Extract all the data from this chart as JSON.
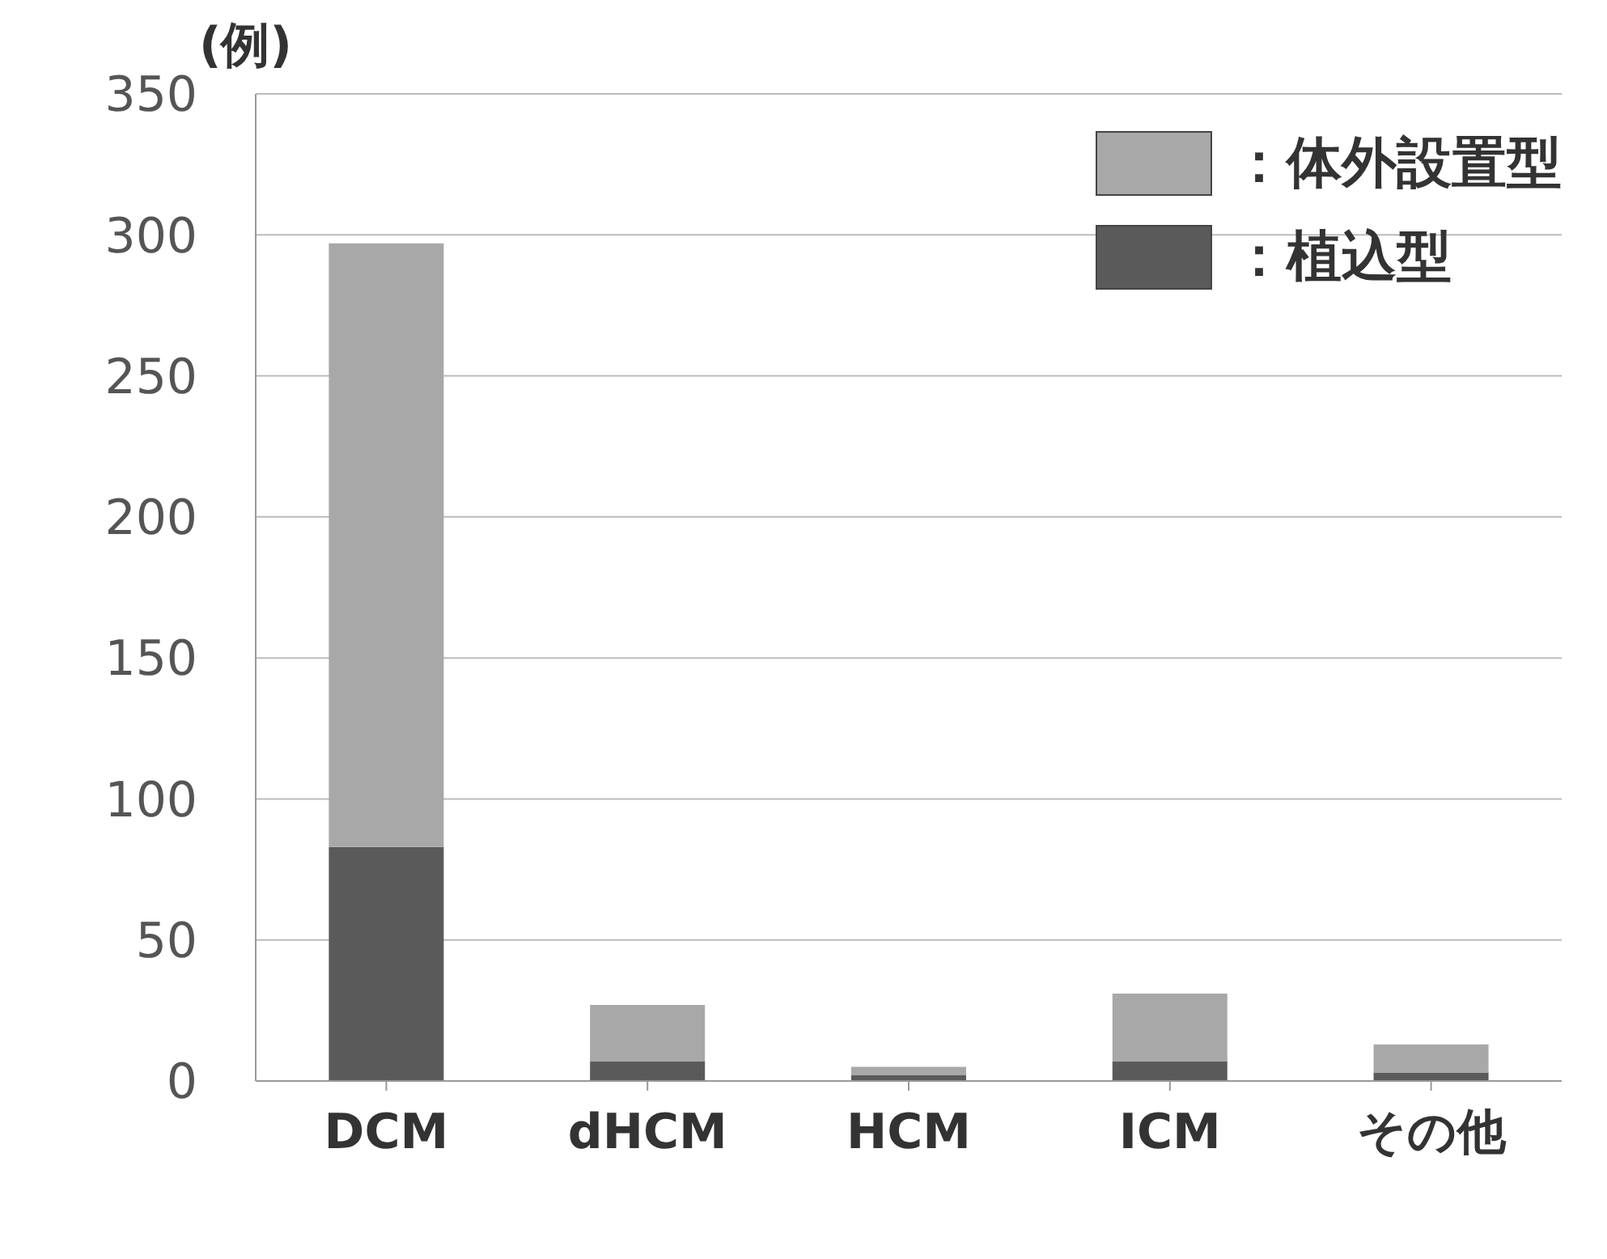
{
  "chart_data": {
    "type": "bar",
    "ylabel": "(例)",
    "categories": [
      "DCM",
      "dHCM",
      "HCM",
      "ICM",
      "その他"
    ],
    "stacked": true,
    "series": [
      {
        "name": "：植込型",
        "color": "#5a5a5a",
        "values": [
          83,
          7,
          2,
          7,
          3
        ]
      },
      {
        "name": "：体外設置型",
        "color": "#a8a8a8",
        "values": [
          214,
          20,
          3,
          24,
          10
        ]
      }
    ],
    "ylim": [
      0,
      350
    ],
    "yticks": [
      0,
      50,
      100,
      150,
      200,
      250,
      300,
      350
    ],
    "grid": "y",
    "legend": "top right"
  }
}
